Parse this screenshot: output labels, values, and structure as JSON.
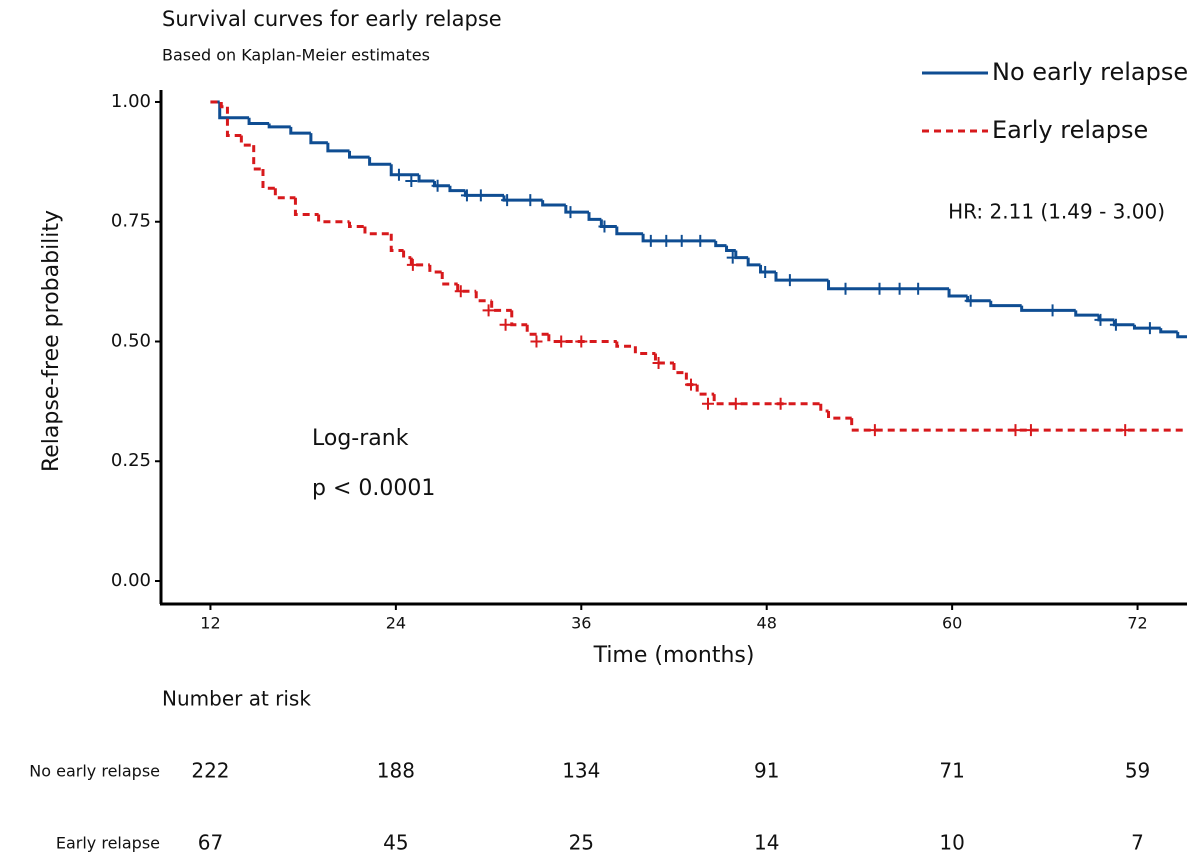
{
  "chart_data": {
    "type": "step",
    "title": "Survival curves for early relapse",
    "subtitle": "Based on Kaplan-Meier estimates",
    "x_label": "Time (months)",
    "y_label": "Relapse-free probability",
    "xlim": [
      8.8,
      75.2
    ],
    "ylim": [
      -0.048,
      1.025
    ],
    "xticks": [
      12,
      24,
      36,
      48,
      60,
      72
    ],
    "yticks": [
      {
        "value": 0,
        "label": "0.00"
      },
      {
        "value": 0.25,
        "label": "0.25"
      },
      {
        "value": 0.5,
        "label": "0.50"
      },
      {
        "value": 0.75,
        "label": "0.75"
      },
      {
        "value": 1,
        "label": "1.00"
      }
    ],
    "grid": false,
    "legend": "top-right",
    "annotations": [
      "HR: 2.11 (1.49 - 3.00)",
      "Log-rank",
      "p < 0.0001"
    ],
    "series": [
      {
        "name": "No early relapse",
        "color": "#0f4d92",
        "dash": "none",
        "x": [
          12,
          12.6,
          14.5,
          15.8,
          17.2,
          18.5,
          19.6,
          21,
          22.3,
          23.7,
          25.5,
          26.5,
          27.5,
          28.5,
          31,
          33.5,
          35,
          36.5,
          37.3,
          38.3,
          40,
          44.7,
          45.4,
          46,
          46.8,
          47.6,
          48.6,
          52,
          59.8,
          61,
          62.5,
          64.5,
          68,
          69.5,
          70.5,
          71.8,
          73.5,
          74.6
        ],
        "values": [
          1,
          0.967,
          0.955,
          0.948,
          0.935,
          0.915,
          0.898,
          0.885,
          0.87,
          0.848,
          0.835,
          0.825,
          0.815,
          0.805,
          0.795,
          0.785,
          0.77,
          0.755,
          0.74,
          0.725,
          0.71,
          0.7,
          0.69,
          0.675,
          0.66,
          0.645,
          0.628,
          0.61,
          0.595,
          0.585,
          0.575,
          0.565,
          0.555,
          0.545,
          0.535,
          0.528,
          0.52,
          0.51
        ],
        "censor_x": [
          24.2,
          25,
          26.7,
          28.6,
          29.5,
          31.2,
          32.7,
          35.3,
          37.5,
          40.5,
          41.5,
          42.5,
          43.7,
          45.8,
          47.9,
          49.5,
          53.1,
          55.3,
          56.6,
          57.8,
          61.2,
          66.5,
          69.6,
          70.6,
          72.8
        ],
        "censor_values": [
          0.848,
          0.835,
          0.825,
          0.805,
          0.805,
          0.795,
          0.795,
          0.77,
          0.74,
          0.71,
          0.71,
          0.71,
          0.71,
          0.675,
          0.645,
          0.628,
          0.61,
          0.61,
          0.61,
          0.61,
          0.585,
          0.565,
          0.545,
          0.535,
          0.528
        ]
      },
      {
        "name": "Early relapse",
        "color": "#d7191c",
        "dash": "7 5",
        "x": [
          12,
          12.7,
          13.1,
          14,
          14.8,
          15.4,
          16.2,
          17.5,
          19,
          21,
          22,
          23.7,
          24.5,
          25,
          26.2,
          27,
          28,
          29.2,
          30.2,
          31.5,
          32.5,
          33.9,
          38.3,
          39.5,
          40.8,
          42,
          42.8,
          43.5,
          44.6,
          51.5,
          52,
          53.5
        ],
        "values": [
          1,
          0.99,
          0.93,
          0.91,
          0.86,
          0.82,
          0.8,
          0.765,
          0.75,
          0.74,
          0.725,
          0.69,
          0.675,
          0.66,
          0.645,
          0.62,
          0.605,
          0.585,
          0.565,
          0.535,
          0.515,
          0.5,
          0.49,
          0.475,
          0.455,
          0.435,
          0.41,
          0.39,
          0.37,
          0.355,
          0.34,
          0.315
        ],
        "censor_x": [
          25.1,
          28.2,
          30,
          31.1,
          33.1,
          34.7,
          36,
          41,
          43.1,
          44.2,
          46,
          48.9,
          55,
          64.1,
          65.1,
          71.2
        ],
        "censor_values": [
          0.66,
          0.605,
          0.565,
          0.535,
          0.5,
          0.5,
          0.5,
          0.455,
          0.41,
          0.37,
          0.37,
          0.37,
          0.315,
          0.315,
          0.315,
          0.315
        ]
      }
    ],
    "risk_table": {
      "title": "Number at risk",
      "rows": [
        {
          "name": "No early relapse",
          "color": "#1f5fa8",
          "values": [
            222,
            188,
            134,
            91,
            71,
            59
          ]
        },
        {
          "name": "Early relapse",
          "color": "#d7191c",
          "values": [
            67,
            45,
            25,
            14,
            10,
            7
          ]
        }
      ]
    }
  }
}
